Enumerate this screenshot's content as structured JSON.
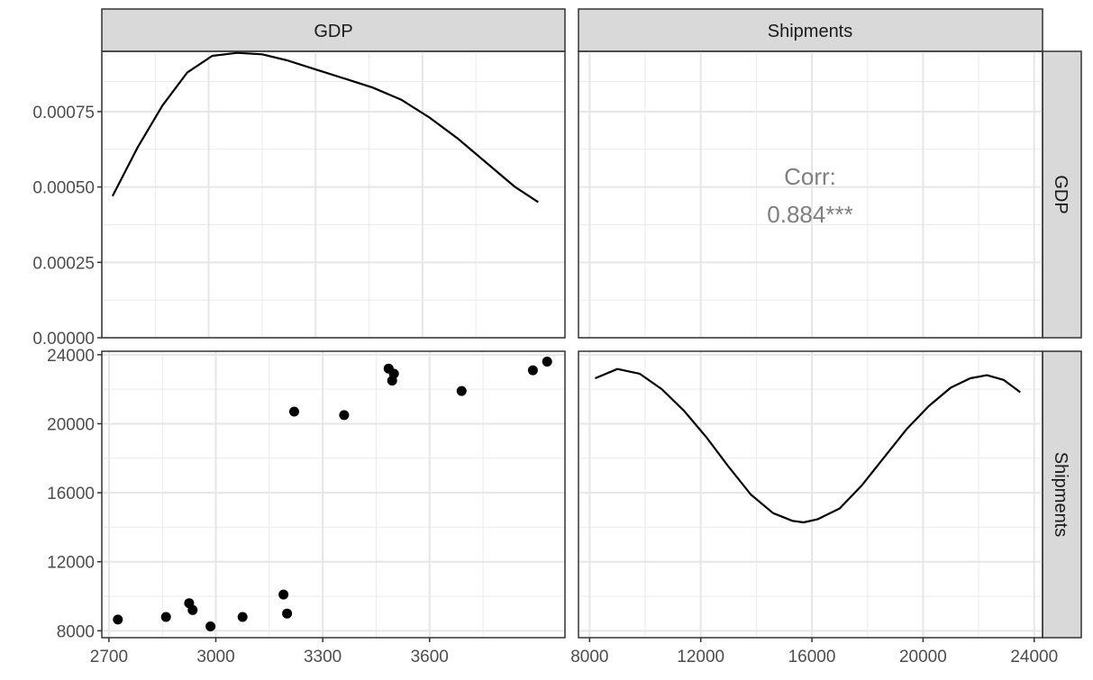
{
  "strips": {
    "top": [
      "GDP",
      "Shipments"
    ],
    "right": [
      "GDP",
      "Shipments"
    ]
  },
  "corr": {
    "label": "Corr:",
    "value": "0.884***"
  },
  "chart_data": [
    {
      "type": "line",
      "panel": "GDP density",
      "xlabel": "",
      "ylabel": "",
      "xlim": [
        2700,
        4000
      ],
      "ylim": [
        0,
        0.00095
      ],
      "x_ticks": [
        2700,
        3000,
        3300,
        3600
      ],
      "y_ticks": [
        0,
        0.00025,
        0.0005,
        0.00075
      ],
      "y_tick_labels": [
        "0.00000",
        "0.00025",
        "0.00050",
        "0.00075"
      ],
      "series": [
        {
          "x": [
            2730,
            2800,
            2870,
            2940,
            3010,
            3080,
            3150,
            3220,
            3300,
            3380,
            3460,
            3540,
            3620,
            3700,
            3780,
            3860,
            3925
          ],
          "values": [
            0.00047,
            0.00063,
            0.00077,
            0.00088,
            0.000935,
            0.000945,
            0.00094,
            0.00092,
            0.00089,
            0.00086,
            0.00083,
            0.00079,
            0.00073,
            0.00066,
            0.00058,
            0.0005,
            0.00045
          ]
        }
      ]
    },
    {
      "type": "table",
      "panel": "GDP vs Shipments correlation",
      "cells": [
        [
          "Corr:"
        ],
        [
          "0.884***"
        ]
      ]
    },
    {
      "type": "scatter",
      "panel": "GDP vs Shipments",
      "xlabel": "",
      "ylabel": "",
      "xlim": [
        2680,
        3980
      ],
      "ylim": [
        7600,
        24200
      ],
      "x_ticks": [
        2700,
        3000,
        3300,
        3600
      ],
      "y_ticks": [
        8000,
        12000,
        16000,
        20000,
        24000
      ],
      "series": [
        {
          "x": [
            2725,
            2860,
            2925,
            2935,
            2985,
            3075,
            3190,
            3200,
            3220,
            3360,
            3485,
            3495,
            3500,
            3690,
            3890,
            3930
          ],
          "values": [
            8650,
            8800,
            9600,
            9200,
            8250,
            8800,
            10100,
            9000,
            20700,
            20500,
            23200,
            22500,
            22900,
            21900,
            23100,
            23600
          ]
        }
      ]
    },
    {
      "type": "line",
      "panel": "Shipments density",
      "xlabel": "",
      "ylabel": "",
      "xlim": [
        7600,
        24300
      ],
      "x_ticks": [
        8000,
        12000,
        16000,
        20000,
        24000
      ],
      "series": [
        {
          "x": [
            8200,
            9000,
            9800,
            10600,
            11400,
            12200,
            13000,
            13800,
            14600,
            15300,
            15700,
            16200,
            17000,
            17800,
            18600,
            19400,
            20200,
            21000,
            21700,
            22300,
            22900,
            23500
          ],
          "values": [
            0.93,
            0.99,
            0.96,
            0.86,
            0.72,
            0.55,
            0.36,
            0.18,
            0.06,
            0.01,
            0.0,
            0.02,
            0.09,
            0.24,
            0.42,
            0.6,
            0.75,
            0.87,
            0.93,
            0.95,
            0.92,
            0.84
          ]
        }
      ]
    }
  ]
}
